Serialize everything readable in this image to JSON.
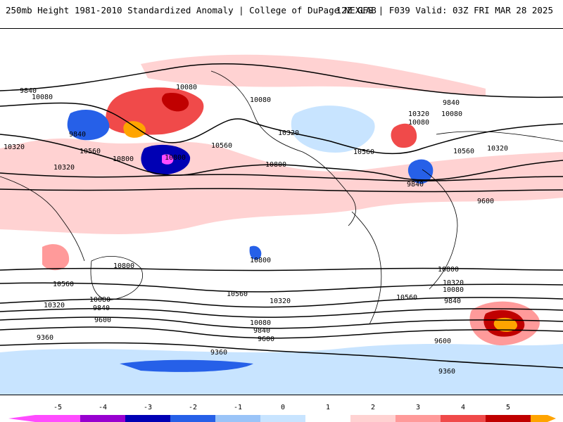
{
  "header": {
    "left_text": "250mb Height 1981-2010 Standardized Anomaly | College of DuPage NEXLAB",
    "right_text": "12Z GFS | F039 Valid: 03Z FRI MAR 28 2025"
  },
  "map": {
    "contour_labels": {
      "c1": "9840",
      "c2": "10080",
      "c3": "10080",
      "c4": "10080",
      "c5": "9840",
      "c6": "10320",
      "c7": "10560",
      "c8": "10800",
      "c9": "10560",
      "c10": "10800",
      "c11": "10320",
      "c12": "10560",
      "c13": "10320",
      "c14": "9840",
      "c15": "10080",
      "c16": "10560",
      "c17": "10320",
      "c18": "9840",
      "c19": "9600",
      "c20": "10800",
      "c21": "10800",
      "c22": "10800",
      "c23": "10560",
      "c24": "10320",
      "c25": "10080",
      "c26": "9840",
      "c27": "9600",
      "c28": "9360",
      "c29": "10560",
      "c30": "10320",
      "c31": "10080",
      "c32": "9840",
      "c33": "9600",
      "c34": "10560",
      "c35": "10320",
      "c36": "10080",
      "c37": "9840",
      "c38": "9600",
      "c39": "9360",
      "c40": "9360",
      "c41": "10800",
      "c42": "10320",
      "c43": "10080"
    }
  },
  "legend": {
    "ticks": [
      "-5",
      "-4",
      "-3",
      "-2",
      "-1",
      "0",
      "1",
      "2",
      "3",
      "4",
      "5"
    ],
    "colors": {
      "m5": "#ff4cff",
      "m45": "#9800d0",
      "m4": "#0000b4",
      "m3": "#2660e8",
      "m2": "#9ac4f8",
      "m1": "#c8e4ff",
      "zero": "#ffffff",
      "p1": "#ffd2d2",
      "p2": "#ff9a9a",
      "p3": "#f04a4a",
      "p4": "#c00000",
      "p5": "#ffa400"
    }
  }
}
